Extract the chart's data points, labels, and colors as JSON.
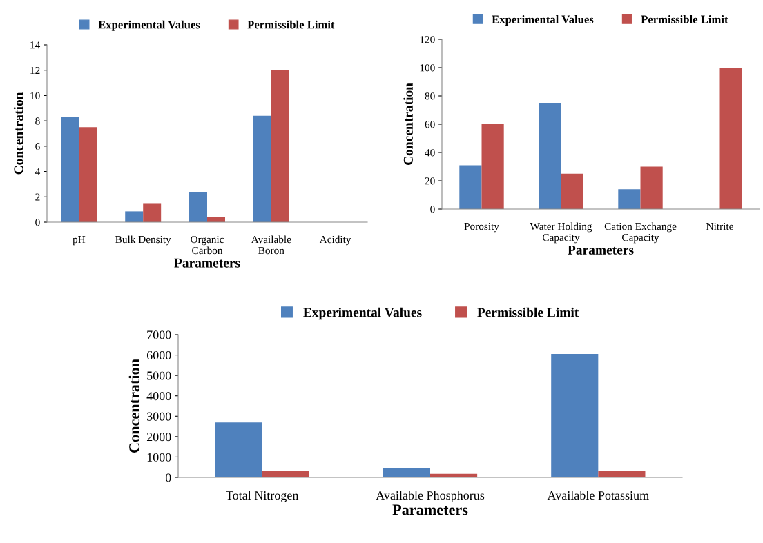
{
  "chart_data": [
    {
      "type": "bar",
      "categories": [
        "pH",
        "Bulk Density",
        "Organic\nCarbon",
        "Available\nBoron",
        "Acidity"
      ],
      "xlabel": "Parameters",
      "ylabel": "Concentration",
      "ylim": [
        0,
        14
      ],
      "yticks": [
        0,
        2,
        4,
        6,
        8,
        10,
        12,
        14
      ],
      "legend": "top",
      "grid": false,
      "series": [
        {
          "name": "Experimental Values",
          "color": "#4f81bd",
          "values": [
            8.3,
            0.85,
            2.4,
            8.4,
            null
          ]
        },
        {
          "name": "Permissible Limit",
          "color": "#c0504d",
          "values": [
            7.5,
            1.5,
            0.4,
            12,
            null
          ]
        }
      ]
    },
    {
      "type": "bar",
      "categories": [
        "Porosity",
        "Water Holding\nCapacity",
        "Cation Exchange\nCapacity",
        "Nitrite"
      ],
      "xlabel": "Parameters",
      "ylabel": "Concentration",
      "ylim": [
        0,
        120
      ],
      "yticks": [
        0,
        20,
        40,
        60,
        80,
        100,
        120
      ],
      "legend": "top",
      "grid": false,
      "series": [
        {
          "name": "Experimental Values",
          "color": "#4f81bd",
          "values": [
            31,
            75,
            14,
            null
          ]
        },
        {
          "name": "Permissible Limit",
          "color": "#c0504d",
          "values": [
            60,
            25,
            30,
            100
          ]
        }
      ]
    },
    {
      "type": "bar",
      "categories": [
        "Total Nitrogen",
        "Available Phosphorus",
        "Available Potassium"
      ],
      "xlabel": "Parameters",
      "ylabel": "Concentration",
      "ylim": [
        0,
        7000
      ],
      "yticks": [
        0,
        1000,
        2000,
        3000,
        4000,
        5000,
        6000,
        7000
      ],
      "legend": "top",
      "grid": false,
      "series": [
        {
          "name": "Experimental Values",
          "color": "#4f81bd",
          "values": [
            2700,
            470,
            6050
          ]
        },
        {
          "name": "Permissible Limit",
          "color": "#c0504d",
          "values": [
            320,
            180,
            320
          ]
        }
      ]
    }
  ]
}
